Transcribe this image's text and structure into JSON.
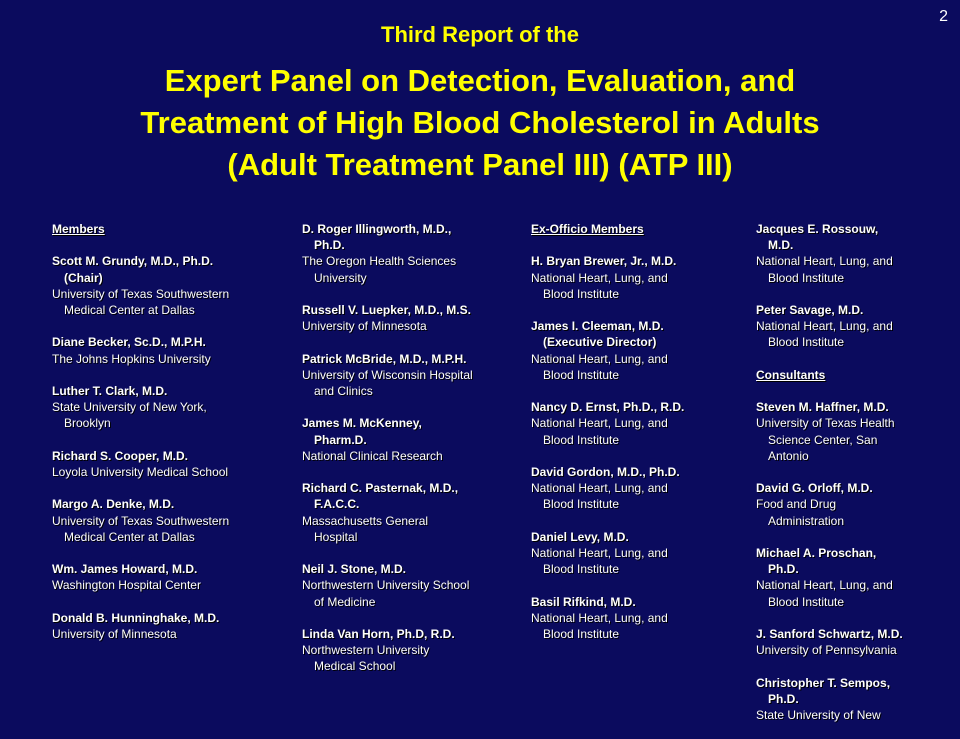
{
  "page_number": "2",
  "subtitle": "Third Report of the",
  "title_lines": [
    "Expert Panel on Detection, Evaluation, and",
    "Treatment of High Blood Cholesterol in Adults",
    "(Adult Treatment Panel III) (ATP III)"
  ],
  "col1": {
    "heading": "Members",
    "entries": [
      {
        "name": [
          "Scott M. Grundy, M.D., Ph.D.",
          "(Chair)"
        ],
        "affil": [
          "University of Texas Southwestern",
          "Medical Center at Dallas"
        ]
      },
      {
        "name": [
          "Diane Becker, Sc.D., M.P.H."
        ],
        "affil": [
          "The Johns Hopkins University"
        ]
      },
      {
        "name": [
          "Luther T. Clark, M.D."
        ],
        "affil": [
          "State University of New York,",
          "Brooklyn"
        ]
      },
      {
        "name": [
          "Richard S. Cooper, M.D."
        ],
        "affil": [
          "Loyola University Medical School"
        ]
      },
      {
        "name": [
          "Margo A. Denke, M.D."
        ],
        "affil": [
          "University of Texas Southwestern",
          "Medical Center at Dallas"
        ]
      },
      {
        "name": [
          "Wm. James Howard, M.D."
        ],
        "affil": [
          "Washington Hospital Center"
        ]
      },
      {
        "name": [
          "Donald B. Hunninghake, M.D."
        ],
        "affil": [
          "University of Minnesota"
        ]
      }
    ]
  },
  "col2": {
    "entries": [
      {
        "name": [
          "D. Roger Illingworth, M.D.,",
          "Ph.D."
        ],
        "affil": [
          "The Oregon Health Sciences",
          "University"
        ]
      },
      {
        "name": [
          "Russell V. Luepker, M.D., M.S."
        ],
        "affil": [
          "University of Minnesota"
        ]
      },
      {
        "name": [
          "Patrick McBride, M.D., M.P.H."
        ],
        "affil": [
          "University of Wisconsin Hospital",
          "and Clinics"
        ]
      },
      {
        "name": [
          "James M. McKenney,",
          "Pharm.D."
        ],
        "affil": [
          "National Clinical Research"
        ]
      },
      {
        "name": [
          "Richard C. Pasternak, M.D.,",
          "F.A.C.C."
        ],
        "affil": [
          "Massachusetts General",
          "Hospital"
        ]
      },
      {
        "name": [
          "Neil J. Stone, M.D."
        ],
        "affil": [
          "Northwestern University School",
          "of Medicine"
        ]
      },
      {
        "name": [
          "Linda Van Horn, Ph.D, R.D."
        ],
        "affil": [
          "Northwestern University",
          "Medical School"
        ]
      }
    ]
  },
  "col3": {
    "heading": "Ex-Officio Members",
    "entries": [
      {
        "name": [
          "H. Bryan Brewer, Jr., M.D."
        ],
        "affil": [
          "National Heart, Lung, and",
          "Blood Institute"
        ]
      },
      {
        "name": [
          "James I. Cleeman, M.D.",
          "(Executive Director)"
        ],
        "affil": [
          "National Heart, Lung, and",
          "Blood Institute"
        ]
      },
      {
        "name": [
          "Nancy D. Ernst, Ph.D., R.D."
        ],
        "affil": [
          "National Heart, Lung, and",
          "Blood Institute"
        ]
      },
      {
        "name": [
          "David Gordon, M.D., Ph.D."
        ],
        "affil": [
          "National Heart, Lung, and",
          "Blood Institute"
        ]
      },
      {
        "name": [
          "Daniel Levy, M.D."
        ],
        "affil": [
          "National Heart, Lung, and",
          "Blood Institute"
        ]
      },
      {
        "name": [
          "Basil Rifkind, M.D."
        ],
        "affil": [
          "National Heart, Lung, and",
          "Blood Institute"
        ]
      }
    ]
  },
  "col4": {
    "entries_top": [
      {
        "name": [
          "Jacques E. Rossouw,",
          "M.D."
        ],
        "affil": [
          "National Heart, Lung, and",
          "Blood Institute"
        ]
      },
      {
        "name": [
          "Peter Savage, M.D."
        ],
        "affil": [
          "National Heart, Lung, and",
          "Blood Institute"
        ]
      }
    ],
    "heading": "Consultants",
    "entries": [
      {
        "name": [
          "Steven M. Haffner, M.D."
        ],
        "affil": [
          "University of Texas Health",
          "Science Center, San",
          "Antonio"
        ]
      },
      {
        "name": [
          "David G. Orloff, M.D."
        ],
        "affil": [
          "Food and Drug",
          "Administration"
        ]
      },
      {
        "name": [
          "Michael A. Proschan,",
          "Ph.D."
        ],
        "affil": [
          "National Heart, Lung, and",
          "Blood Institute"
        ]
      },
      {
        "name": [
          "J. Sanford Schwartz, M.D."
        ],
        "affil": [
          "University of Pennsylvania"
        ]
      },
      {
        "name": [
          "Christopher T. Sempos,",
          "Ph.D."
        ],
        "affil": [
          "State University of New"
        ]
      }
    ]
  }
}
